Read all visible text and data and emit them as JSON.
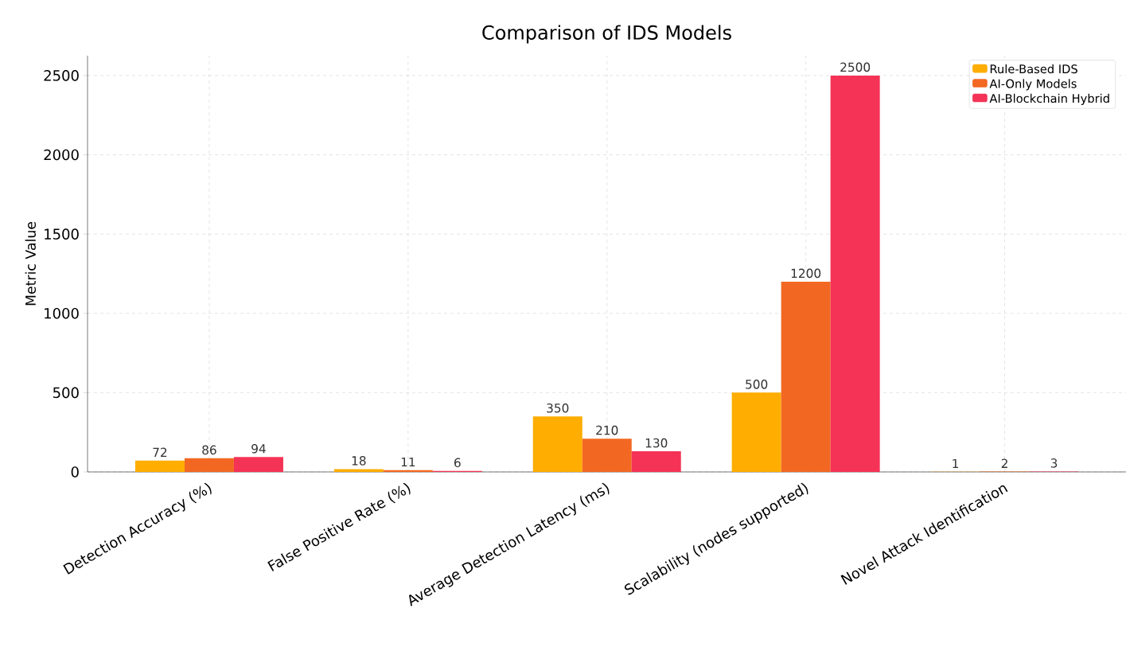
{
  "chart_data": {
    "type": "bar",
    "title": "Comparison of IDS Models",
    "ylabel": "Metric Value",
    "categories": [
      "Detection Accuracy (%)",
      "False Positive Rate (%)",
      "Average Detection Latency (ms)",
      "Scalability (nodes supported)",
      "Novel Attack Identification"
    ],
    "series": [
      {
        "name": "Rule-Based IDS",
        "color": "#ffad00",
        "values": [
          72,
          18,
          350,
          500,
          1
        ]
      },
      {
        "name": "AI-Only Models",
        "color": "#f26822",
        "values": [
          86,
          11,
          210,
          1200,
          2
        ]
      },
      {
        "name": "AI-Blockchain Hybrid",
        "color": "#f43356",
        "values": [
          94,
          6,
          130,
          2500,
          3
        ]
      }
    ],
    "ylim": [
      0,
      2625
    ],
    "yticks": [
      0,
      500,
      1000,
      1500,
      2000,
      2500
    ],
    "grid": true,
    "legend": "top right",
    "data_labels": true
  }
}
